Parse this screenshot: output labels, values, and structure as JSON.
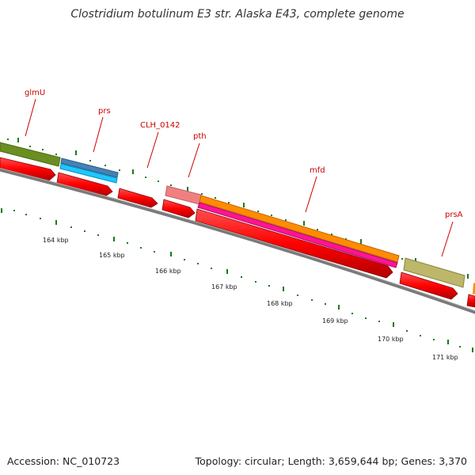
{
  "title": "Clostridium botulinum E3 str. Alaska E43, complete genome",
  "footer": {
    "accession": "Accession: NC_010723",
    "topology": "Topology: circular; Length: 3,659,644 bp; Genes: 3,370"
  },
  "colors": {
    "cds_arrow": "#ff0000",
    "backbone": "#808080",
    "tick": "#1a7a1a",
    "label": "#cc0000"
  },
  "gene_labels": [
    "glmU",
    "prs",
    "CLH_0142",
    "pth",
    "mfd",
    "prsA"
  ],
  "kbp_labels": [
    "164 kbp",
    "165 kbp",
    "166 kbp",
    "167 kbp",
    "168 kbp",
    "169 kbp",
    "170 kbp",
    "171 kbp"
  ]
}
